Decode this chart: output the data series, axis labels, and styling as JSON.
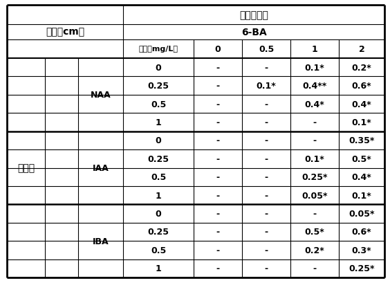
{
  "title_top": "细胞分裂素",
  "title_sub": "6-BA",
  "col_header": [
    "浓度（mg/L）",
    "0",
    "0.5",
    "1",
    "2"
  ],
  "left_top_label": "株高（cm）",
  "growth_label": "生长素",
  "groups": [
    "NAA",
    "IAA",
    "IBA"
  ],
  "naa_rows": [
    [
      "0",
      "-",
      "-",
      "0.1*",
      "0.2*"
    ],
    [
      "0.25",
      "-",
      "0.1*",
      "0.4**",
      "0.6*"
    ],
    [
      "0.5",
      "-",
      "-",
      "0.4*",
      "0.4*"
    ],
    [
      "1",
      "-",
      "-",
      "-",
      "0.1*"
    ]
  ],
  "iaa_rows": [
    [
      "0",
      "-",
      "-",
      "-",
      "0.35*"
    ],
    [
      "0.25",
      "-",
      "-",
      "0.1*",
      "0.5*"
    ],
    [
      "0.5",
      "-",
      "-",
      "0.25*",
      "0.4*"
    ],
    [
      "1",
      "-",
      "-",
      "0.05*",
      "0.1*"
    ]
  ],
  "iba_rows": [
    [
      "0",
      "-",
      "-",
      "-",
      "0.05*"
    ],
    [
      "0.25",
      "-",
      "-",
      "0.5*",
      "0.6*"
    ],
    [
      "0.5",
      "-",
      "-",
      "0.2*",
      "0.3*"
    ],
    [
      "1",
      "-",
      "-",
      "-",
      "0.25*"
    ]
  ],
  "outer_lw": 2.0,
  "inner_lw": 0.8,
  "group_sep_lw": 1.8,
  "header_sep_lw": 1.5,
  "bg": "#ffffff",
  "fg": "#000000"
}
